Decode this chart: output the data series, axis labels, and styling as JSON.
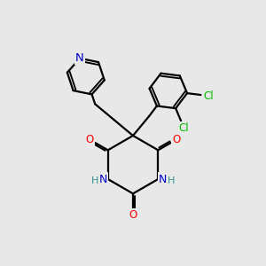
{
  "bg_color": "#e8e8e8",
  "bond_color": "#000000",
  "N_color": "#0000cc",
  "O_color": "#ff0000",
  "Cl_color": "#00bb00",
  "NH_color": "#2f8f8f",
  "line_width": 1.6,
  "figsize": [
    3.0,
    3.0
  ],
  "dpi": 100,
  "xlim": [
    0,
    10
  ],
  "ylim": [
    0,
    10
  ]
}
